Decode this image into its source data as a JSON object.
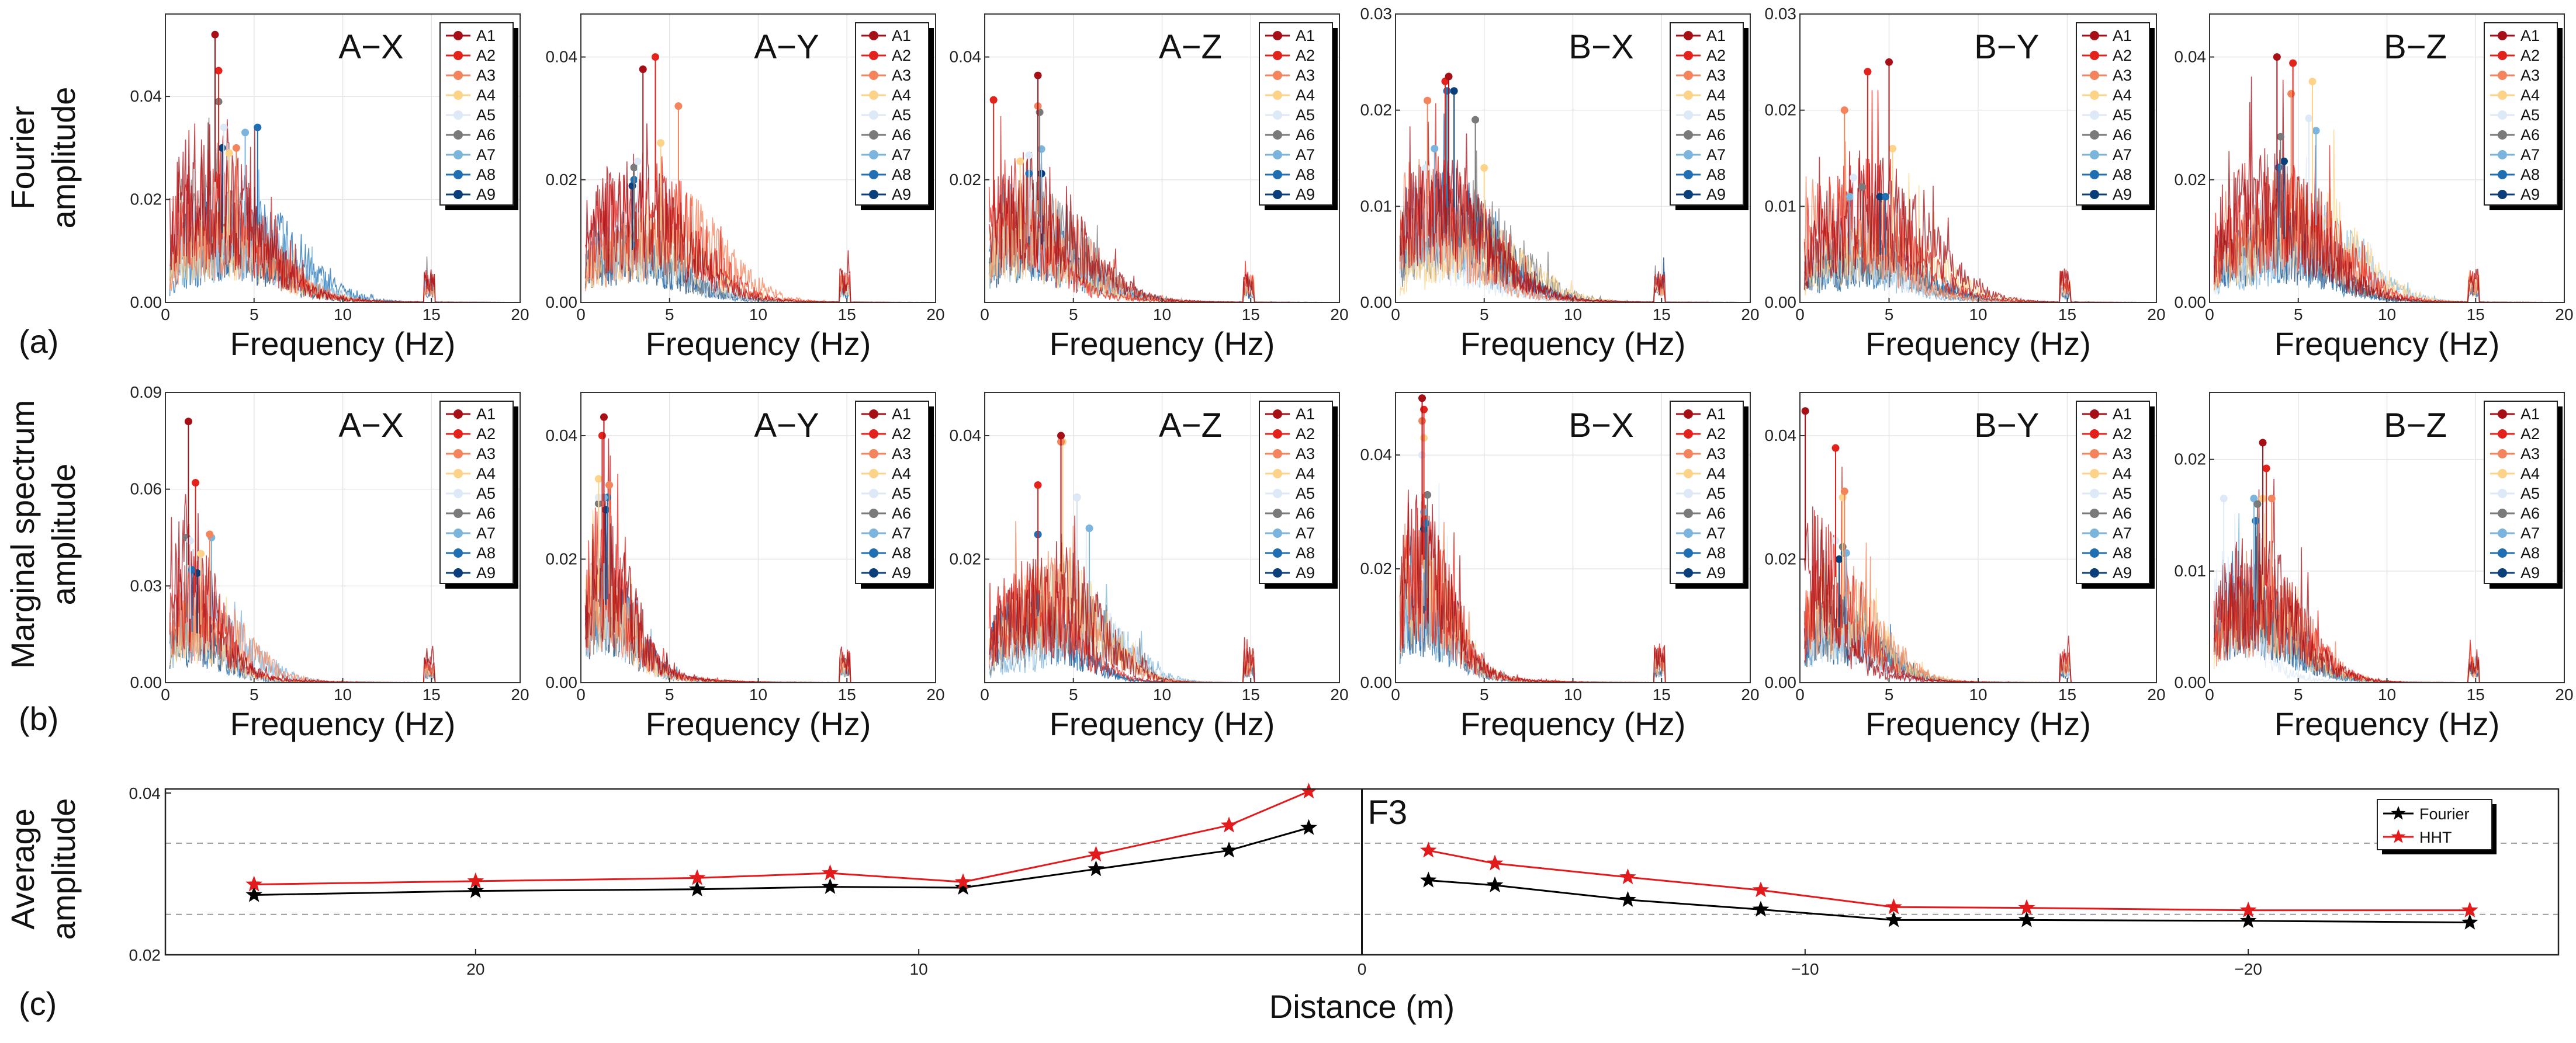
{
  "figure": {
    "row_labels": [
      {
        "label": "Fourier",
        "label2": "amplitude"
      },
      {
        "label": "Marginal spectrum",
        "label2": "amplitude"
      },
      {
        "label": "Average",
        "label2": "amplitude"
      }
    ],
    "panel_letters": [
      "(a)",
      "(b)",
      "(c)"
    ],
    "x_title": "Frequency (Hz)",
    "series_names": [
      "A1",
      "A2",
      "A3",
      "A4",
      "A5",
      "A6",
      "A7",
      "A8",
      "A9"
    ],
    "colors": {
      "A1": "#a50f15",
      "A2": "#e3231b",
      "A3": "#f4845c",
      "A4": "#fdd38a",
      "A5": "#dde9f6",
      "A6": "#7a7a7a",
      "A7": "#7bb4dc",
      "A8": "#1f6fb2",
      "A9": "#0b3f7a"
    }
  },
  "chart_data": [
    {
      "type": "line",
      "row": "(a)",
      "title": "A−X",
      "xlabel": "Frequency (Hz)",
      "ylabel": "Fourier amplitude",
      "xlim": [
        0,
        20
      ],
      "ylim": [
        0,
        0.056
      ],
      "xticks": [
        0,
        5,
        10,
        15,
        20
      ],
      "yticks": [
        0,
        0.02,
        0.04
      ],
      "ytick_labels": [
        "0.00",
        "0.02",
        "0.04"
      ],
      "legend": "top-right",
      "peaks": {
        "A1": [
          2.8,
          0.052
        ],
        "A2": [
          3.0,
          0.045
        ],
        "A3": [
          4.0,
          0.03
        ],
        "A4": [
          3.6,
          0.029
        ],
        "A5": [
          3.3,
          0.034
        ],
        "A6": [
          3.0,
          0.039
        ],
        "A7": [
          4.5,
          0.033
        ],
        "A8": [
          5.2,
          0.034
        ],
        "A9": [
          3.2,
          0.03
        ]
      }
    },
    {
      "type": "line",
      "row": "(a)",
      "title": "A−Y",
      "xlabel": "Frequency (Hz)",
      "ylabel": "Fourier amplitude",
      "xlim": [
        0,
        20
      ],
      "ylim": [
        0,
        0.047
      ],
      "xticks": [
        0,
        5,
        10,
        15,
        20
      ],
      "yticks": [
        0,
        0.02,
        0.04
      ],
      "ytick_labels": [
        "0.00",
        "0.02",
        "0.04"
      ],
      "legend": "top-right",
      "peaks": {
        "A1": [
          3.5,
          0.038
        ],
        "A2": [
          4.2,
          0.04
        ],
        "A3": [
          5.5,
          0.032
        ],
        "A4": [
          4.5,
          0.026
        ],
        "A5": [
          3.2,
          0.023
        ],
        "A6": [
          3.0,
          0.022
        ],
        "A7": [
          3.0,
          0.022
        ],
        "A8": [
          3.0,
          0.02
        ],
        "A9": [
          2.9,
          0.019
        ]
      }
    },
    {
      "type": "line",
      "row": "(a)",
      "title": "A−Z",
      "xlabel": "Frequency (Hz)",
      "ylabel": "Fourier amplitude",
      "xlim": [
        0,
        20
      ],
      "ylim": [
        0,
        0.047
      ],
      "xticks": [
        0,
        5,
        10,
        15,
        20
      ],
      "yticks": [
        0,
        0.02,
        0.04
      ],
      "ytick_labels": [
        "",
        "0.02",
        "0.04"
      ],
      "legend": "top-right",
      "peaks": {
        "A1": [
          3.0,
          0.037
        ],
        "A2": [
          0.5,
          0.033
        ],
        "A3": [
          3.0,
          0.032
        ],
        "A4": [
          2.0,
          0.023
        ],
        "A5": [
          2.5,
          0.024
        ],
        "A6": [
          3.1,
          0.031
        ],
        "A7": [
          3.2,
          0.025
        ],
        "A8": [
          2.5,
          0.021
        ],
        "A9": [
          3.2,
          0.021
        ]
      }
    },
    {
      "type": "line",
      "row": "(a)",
      "title": "B−X",
      "xlabel": "Frequency (Hz)",
      "ylabel": "Fourier amplitude",
      "xlim": [
        0,
        20
      ],
      "ylim": [
        0,
        0.03
      ],
      "xticks": [
        0,
        5,
        10,
        15,
        20
      ],
      "yticks": [
        0,
        0.01,
        0.02,
        0.03
      ],
      "ytick_labels": [
        "0.00",
        "0.01",
        "0.02",
        "0.03"
      ],
      "legend": "top-right",
      "peaks": {
        "A1": [
          3.0,
          0.0235
        ],
        "A2": [
          2.8,
          0.023
        ],
        "A3": [
          1.8,
          0.021
        ],
        "A4": [
          5.0,
          0.014
        ],
        "A5": [
          1.7,
          0.014
        ],
        "A6": [
          4.5,
          0.019
        ],
        "A7": [
          2.2,
          0.016
        ],
        "A8": [
          2.9,
          0.022
        ],
        "A9": [
          3.3,
          0.022
        ]
      }
    },
    {
      "type": "line",
      "row": "(a)",
      "title": "B−Y",
      "xlabel": "Frequency (Hz)",
      "ylabel": "Fourier amplitude",
      "xlim": [
        0,
        20
      ],
      "ylim": [
        0,
        0.03
      ],
      "xticks": [
        0,
        5,
        10,
        15,
        20
      ],
      "yticks": [
        0,
        0.01,
        0.02,
        0.03
      ],
      "ytick_labels": [
        "0.00",
        "0.01",
        "0.02",
        "0.03"
      ],
      "legend": "top-right",
      "peaks": {
        "A1": [
          5.0,
          0.025
        ],
        "A2": [
          3.8,
          0.024
        ],
        "A3": [
          2.5,
          0.02
        ],
        "A4": [
          5.2,
          0.016
        ],
        "A5": [
          3.0,
          0.013
        ],
        "A6": [
          3.5,
          0.012
        ],
        "A7": [
          2.8,
          0.011
        ],
        "A8": [
          4.8,
          0.011
        ],
        "A9": [
          4.5,
          0.011
        ]
      }
    },
    {
      "type": "line",
      "row": "(a)",
      "title": "B−Z",
      "xlabel": "Frequency (Hz)",
      "ylabel": "Fourier amplitude",
      "xlim": [
        0,
        20
      ],
      "ylim": [
        0,
        0.047
      ],
      "xticks": [
        0,
        5,
        10,
        15,
        20
      ],
      "yticks": [
        0,
        0.02,
        0.04
      ],
      "ytick_labels": [
        "0.00",
        "0.02",
        "0.04"
      ],
      "legend": "top-right",
      "peaks": {
        "A1": [
          3.8,
          0.04
        ],
        "A2": [
          4.7,
          0.039
        ],
        "A3": [
          4.6,
          0.034
        ],
        "A4": [
          5.8,
          0.036
        ],
        "A5": [
          5.6,
          0.03
        ],
        "A6": [
          4.0,
          0.027
        ],
        "A7": [
          6.0,
          0.028
        ],
        "A8": [
          3.9,
          0.022
        ],
        "A9": [
          4.2,
          0.023
        ]
      }
    },
    {
      "type": "line",
      "row": "(b)",
      "title": "A−X",
      "xlabel": "Frequency (Hz)",
      "ylabel": "Marginal spectrum amplitude",
      "xlim": [
        0,
        20
      ],
      "ylim": [
        0,
        0.09
      ],
      "xticks": [
        0,
        5,
        10,
        15,
        20
      ],
      "yticks": [
        0,
        0.03,
        0.06,
        0.09
      ],
      "ytick_labels": [
        "0.00",
        "0.03",
        "0.06",
        "0.09"
      ],
      "legend": "top-right",
      "peaks": {
        "A1": [
          1.3,
          0.081
        ],
        "A2": [
          1.7,
          0.062
        ],
        "A3": [
          2.5,
          0.046
        ],
        "A4": [
          2.0,
          0.04
        ],
        "A5": [
          1.4,
          0.044
        ],
        "A6": [
          1.2,
          0.045
        ],
        "A7": [
          2.6,
          0.045
        ],
        "A8": [
          1.5,
          0.035
        ],
        "A9": [
          1.8,
          0.034
        ]
      }
    },
    {
      "type": "line",
      "row": "(b)",
      "title": "A−Y",
      "xlabel": "Frequency (Hz)",
      "ylabel": "Marginal spectrum amplitude",
      "xlim": [
        0,
        20
      ],
      "ylim": [
        0,
        0.047
      ],
      "xticks": [
        0,
        5,
        10,
        15,
        20
      ],
      "yticks": [
        0,
        0.02,
        0.04
      ],
      "ytick_labels": [
        "0.00",
        "0.02",
        "0.04"
      ],
      "legend": "top-right",
      "peaks": {
        "A1": [
          1.3,
          0.043
        ],
        "A2": [
          1.2,
          0.04
        ],
        "A3": [
          1.6,
          0.032
        ],
        "A4": [
          1.0,
          0.033
        ],
        "A5": [
          1.0,
          0.03
        ],
        "A6": [
          1.0,
          0.029
        ],
        "A7": [
          1.3,
          0.03
        ],
        "A8": [
          1.5,
          0.03
        ],
        "A9": [
          1.4,
          0.028
        ]
      }
    },
    {
      "type": "line",
      "row": "(b)",
      "title": "A−Z",
      "xlabel": "Frequency (Hz)",
      "ylabel": "Marginal spectrum amplitude",
      "xlim": [
        0,
        20
      ],
      "ylim": [
        0,
        0.047
      ],
      "xticks": [
        0,
        5,
        10,
        15,
        20
      ],
      "yticks": [
        0,
        0.02,
        0.04
      ],
      "ytick_labels": [
        "",
        "0.02",
        "0.04"
      ],
      "legend": "top-right",
      "peaks": {
        "A1": [
          4.3,
          0.04
        ],
        "A2": [
          3.0,
          0.032
        ],
        "A3": [
          4.3,
          0.039
        ],
        "A4": [
          4.4,
          0.039
        ],
        "A5": [
          5.2,
          0.03
        ],
        "A6": [
          5.2,
          0.03
        ],
        "A7": [
          5.9,
          0.025
        ],
        "A8": [
          3.0,
          0.024
        ],
        "A9": [
          3.0,
          0.024
        ]
      }
    },
    {
      "type": "line",
      "row": "(b)",
      "title": "B−X",
      "xlabel": "Frequency (Hz)",
      "ylabel": "Marginal spectrum amplitude",
      "xlim": [
        0,
        20
      ],
      "ylim": [
        0,
        0.051
      ],
      "xticks": [
        0,
        5,
        10,
        15,
        20
      ],
      "yticks": [
        0,
        0.02,
        0.04
      ],
      "ytick_labels": [
        "0.00",
        "0.02",
        "0.04"
      ],
      "legend": "top-right",
      "peaks": {
        "A1": [
          1.5,
          0.05
        ],
        "A2": [
          1.6,
          0.048
        ],
        "A3": [
          1.5,
          0.046
        ],
        "A4": [
          1.6,
          0.043
        ],
        "A5": [
          1.5,
          0.04
        ],
        "A6": [
          1.8,
          0.033
        ],
        "A7": [
          1.6,
          0.03
        ],
        "A8": [
          1.7,
          0.028
        ],
        "A9": [
          1.6,
          0.027
        ]
      }
    },
    {
      "type": "line",
      "row": "(b)",
      "title": "B−Y",
      "xlabel": "Frequency (Hz)",
      "ylabel": "Marginal spectrum amplitude",
      "xlim": [
        0,
        20
      ],
      "ylim": [
        0,
        0.047
      ],
      "xticks": [
        0,
        5,
        10,
        15,
        20
      ],
      "yticks": [
        0,
        0.02,
        0.04
      ],
      "ytick_labels": [
        "0.00",
        "0.02",
        "0.04"
      ],
      "legend": "top-right",
      "peaks": {
        "A1": [
          0.3,
          0.044
        ],
        "A2": [
          2.0,
          0.038
        ],
        "A3": [
          2.5,
          0.031
        ],
        "A4": [
          2.4,
          0.03
        ],
        "A5": [
          2.0,
          0.023
        ],
        "A6": [
          2.4,
          0.022
        ],
        "A7": [
          2.6,
          0.021
        ],
        "A8": [
          2.5,
          0.021
        ],
        "A9": [
          2.2,
          0.02
        ]
      }
    },
    {
      "type": "line",
      "row": "(b)",
      "title": "B−Z",
      "xlabel": "Frequency (Hz)",
      "ylabel": "Marginal spectrum amplitude",
      "xlim": [
        0,
        20
      ],
      "ylim": [
        0,
        0.026
      ],
      "xticks": [
        0,
        5,
        10,
        15,
        20
      ],
      "yticks": [
        0,
        0.01,
        0.02
      ],
      "ytick_labels": [
        "0.00",
        "0.01",
        "0.02"
      ],
      "legend": "top-right",
      "peaks": {
        "A1": [
          3.0,
          0.0215
        ],
        "A2": [
          3.2,
          0.0192
        ],
        "A3": [
          3.5,
          0.0165
        ],
        "A4": [
          3.0,
          0.0165
        ],
        "A5": [
          0.8,
          0.0165
        ],
        "A6": [
          2.7,
          0.016
        ],
        "A7": [
          2.5,
          0.0165
        ],
        "A8": [
          2.6,
          0.0145
        ],
        "A9": [
          2.6,
          0.0145
        ]
      }
    },
    {
      "type": "line",
      "row": "(c)",
      "title": "",
      "xlabel": "Distance (m)",
      "ylabel": "Average amplitude",
      "xlim": [
        27,
        -27
      ],
      "ylim": [
        0.02,
        0.0405
      ],
      "xticks": [
        20,
        10,
        0,
        -10,
        -20
      ],
      "xtick_labels": [
        "20",
        "10",
        "0",
        "−10",
        "−20"
      ],
      "yticks": [
        0.02,
        0.04
      ],
      "ytick_labels": [
        "0.02",
        "0.04"
      ],
      "hlines": [
        0.025,
        0.0338
      ],
      "vline": 0,
      "annotation": "F3",
      "legend": "top-right",
      "x": [
        25,
        20,
        15,
        12,
        9,
        6,
        3,
        1.2,
        -1.5,
        -3,
        -6,
        -9,
        -12,
        -15,
        -20,
        -25
      ],
      "series": [
        {
          "name": "Fourier",
          "color": "#000000",
          "values": [
            0.0274,
            0.0279,
            0.0281,
            0.0284,
            0.0283,
            0.0306,
            0.0329,
            0.0357,
            0.0292,
            0.0286,
            0.0268,
            0.0256,
            0.0243,
            0.0243,
            0.0242,
            0.024
          ]
        },
        {
          "name": "HHT",
          "color": "#e31a1c",
          "values": [
            0.0287,
            0.0291,
            0.0295,
            0.0301,
            0.029,
            0.0324,
            0.036,
            0.0402,
            0.0329,
            0.0313,
            0.0296,
            0.028,
            0.0259,
            0.0258,
            0.0255,
            0.0255
          ]
        }
      ]
    }
  ]
}
